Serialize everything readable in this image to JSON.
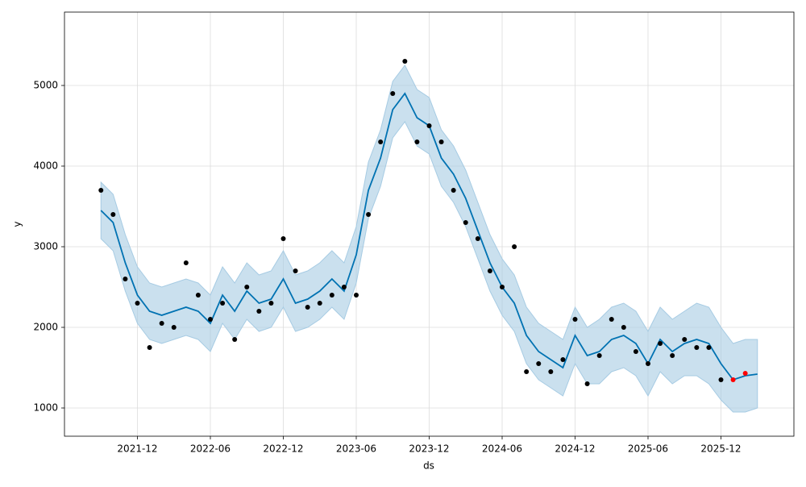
{
  "chart_data": {
    "type": "line",
    "x_label": "ds",
    "y_label": "y",
    "grid": true,
    "xlim": [
      "2021-06",
      "2026-06"
    ],
    "xticks": [
      "2021-12",
      "2022-06",
      "2022-12",
      "2023-06",
      "2023-12",
      "2024-06",
      "2024-12",
      "2025-06",
      "2025-12"
    ],
    "ylim": [
      650,
      5910
    ],
    "yticks": [
      1000,
      2000,
      3000,
      4000,
      5000
    ],
    "forecast": {
      "color": "#0072b2",
      "band_color": "#a6cbe3",
      "x": [
        "2021-09",
        "2021-10",
        "2021-11",
        "2021-12",
        "2022-01",
        "2022-02",
        "2022-03",
        "2022-04",
        "2022-05",
        "2022-06",
        "2022-07",
        "2022-08",
        "2022-09",
        "2022-10",
        "2022-11",
        "2022-12",
        "2023-01",
        "2023-02",
        "2023-03",
        "2023-04",
        "2023-05",
        "2023-06",
        "2023-07",
        "2023-08",
        "2023-09",
        "2023-10",
        "2023-11",
        "2023-12",
        "2024-01",
        "2024-02",
        "2024-03",
        "2024-04",
        "2024-05",
        "2024-06",
        "2024-07",
        "2024-08",
        "2024-09",
        "2024-10",
        "2024-11",
        "2024-12",
        "2025-01",
        "2025-02",
        "2025-03",
        "2025-04",
        "2025-05",
        "2025-06",
        "2025-07",
        "2025-08",
        "2025-09",
        "2025-10",
        "2025-11",
        "2025-12",
        "2026-01",
        "2026-02",
        "2026-03"
      ],
      "values": [
        3450,
        3300,
        2800,
        2400,
        2200,
        2150,
        2200,
        2250,
        2200,
        2050,
        2400,
        2200,
        2450,
        2300,
        2350,
        2600,
        2300,
        2350,
        2450,
        2600,
        2450,
        2900,
        3700,
        4100,
        4700,
        4900,
        4600,
        4500,
        4100,
        3900,
        3600,
        3200,
        2800,
        2500,
        2300,
        1900,
        1700,
        1600,
        1500,
        1900,
        1650,
        1700,
        1850,
        1900,
        1800,
        1550,
        1850,
        1700,
        1800,
        1850,
        1800,
        1550,
        1350,
        1400,
        1420
      ],
      "lower": [
        3100,
        2950,
        2450,
        2050,
        1850,
        1800,
        1850,
        1900,
        1850,
        1700,
        2050,
        1850,
        2100,
        1950,
        2000,
        2250,
        1950,
        2000,
        2100,
        2250,
        2100,
        2550,
        3350,
        3750,
        4350,
        4550,
        4250,
        4150,
        3750,
        3550,
        3250,
        2850,
        2450,
        2150,
        1950,
        1550,
        1350,
        1250,
        1150,
        1550,
        1300,
        1300,
        1450,
        1500,
        1400,
        1150,
        1450,
        1300,
        1400,
        1400,
        1300,
        1100,
        950,
        950,
        1000
      ],
      "upper": [
        3800,
        3650,
        3150,
        2750,
        2550,
        2500,
        2550,
        2600,
        2550,
        2400,
        2750,
        2550,
        2800,
        2650,
        2700,
        2950,
        2650,
        2700,
        2800,
        2950,
        2800,
        3250,
        4050,
        4450,
        5050,
        5250,
        4950,
        4850,
        4450,
        4250,
        3950,
        3550,
        3150,
        2850,
        2650,
        2250,
        2050,
        1950,
        1850,
        2250,
        2000,
        2100,
        2250,
        2300,
        2200,
        1950,
        2250,
        2100,
        2200,
        2300,
        2250,
        2000,
        1800,
        1850,
        1850
      ]
    },
    "observed": {
      "color": "#000000",
      "x": [
        "2021-09",
        "2021-10",
        "2021-11",
        "2021-12",
        "2022-01",
        "2022-02",
        "2022-03",
        "2022-04",
        "2022-05",
        "2022-06",
        "2022-07",
        "2022-08",
        "2022-09",
        "2022-10",
        "2022-11",
        "2022-12",
        "2023-01",
        "2023-02",
        "2023-03",
        "2023-04",
        "2023-05",
        "2023-06",
        "2023-07",
        "2023-08",
        "2023-09",
        "2023-10",
        "2023-11",
        "2023-12",
        "2024-01",
        "2024-02",
        "2024-03",
        "2024-04",
        "2024-05",
        "2024-06",
        "2024-07",
        "2024-08",
        "2024-09",
        "2024-10",
        "2024-11",
        "2024-12",
        "2025-01",
        "2025-02",
        "2025-03",
        "2025-04",
        "2025-05",
        "2025-06",
        "2025-07",
        "2025-08",
        "2025-09",
        "2025-10",
        "2025-11",
        "2025-12"
      ],
      "values": [
        3700,
        3400,
        2600,
        2300,
        1750,
        2050,
        2000,
        2800,
        2400,
        2100,
        2300,
        1850,
        2500,
        2200,
        2300,
        3100,
        2700,
        2250,
        2300,
        2400,
        2500,
        2400,
        3400,
        4300,
        4900,
        5300,
        4300,
        4500,
        4300,
        3700,
        3300,
        3100,
        2700,
        2500,
        3000,
        1450,
        1550,
        1450,
        1600,
        2100,
        1300,
        1650,
        2100,
        2000,
        1700,
        1550,
        1800,
        1650,
        1850,
        1750,
        1750,
        1350
      ]
    },
    "holdout": {
      "color": "#ff0000",
      "x": [
        "2026-01",
        "2026-02"
      ],
      "values": [
        1350,
        1430
      ]
    }
  }
}
